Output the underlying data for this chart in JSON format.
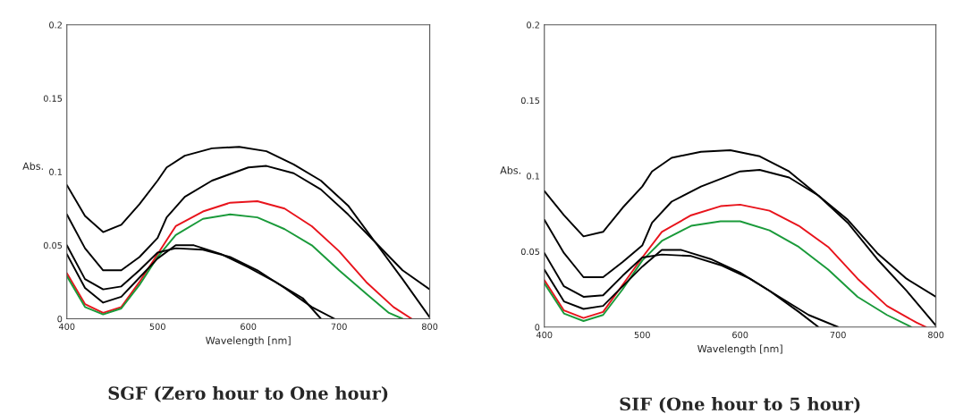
{
  "chart_data": [
    {
      "type": "line",
      "title": "SGF (Zero hour to One hour)",
      "xlabel": "Wavelength [nm]",
      "ylabel": "Abs.",
      "xlim": [
        400,
        800
      ],
      "ylim": [
        0,
        0.2
      ],
      "xticks": [
        400,
        500,
        600,
        700,
        800
      ],
      "yticks": [
        0,
        0.05,
        0.1,
        0.15,
        0.2
      ],
      "grid": false,
      "marker": "none",
      "line_style": "solid",
      "series": [
        {
          "color": "#000000",
          "x": [
            400,
            420,
            440,
            460,
            480,
            500,
            510,
            530,
            560,
            590,
            620,
            650,
            680,
            710,
            740,
            770,
            800
          ],
          "values": [
            0.091,
            0.07,
            0.059,
            0.064,
            0.078,
            0.094,
            0.103,
            0.111,
            0.116,
            0.117,
            0.114,
            0.105,
            0.094,
            0.077,
            0.052,
            0.033,
            0.02
          ]
        },
        {
          "color": "#000000",
          "x": [
            400,
            420,
            440,
            460,
            480,
            500,
            510,
            530,
            560,
            600,
            620,
            650,
            680,
            710,
            740,
            770,
            800
          ],
          "values": [
            0.071,
            0.048,
            0.033,
            0.033,
            0.042,
            0.055,
            0.069,
            0.083,
            0.094,
            0.103,
            0.104,
            0.099,
            0.088,
            0.071,
            0.052,
            0.027,
            0.001
          ]
        },
        {
          "color": "#e8141c",
          "x": [
            400,
            420,
            440,
            460,
            480,
            500,
            520,
            550,
            580,
            610,
            640,
            670,
            700,
            730,
            760,
            780
          ],
          "values": [
            0.031,
            0.01,
            0.004,
            0.008,
            0.025,
            0.044,
            0.063,
            0.073,
            0.079,
            0.08,
            0.075,
            0.063,
            0.046,
            0.025,
            0.008,
            0
          ]
        },
        {
          "color": "#1a9a3a",
          "x": [
            400,
            420,
            440,
            460,
            480,
            500,
            520,
            550,
            580,
            610,
            640,
            670,
            700,
            730,
            755,
            770
          ],
          "values": [
            0.029,
            0.008,
            0.003,
            0.007,
            0.023,
            0.042,
            0.057,
            0.068,
            0.071,
            0.069,
            0.061,
            0.05,
            0.033,
            0.017,
            0.004,
            0
          ]
        },
        {
          "color": "#000000",
          "x": [
            400,
            420,
            440,
            460,
            480,
            500,
            520,
            540,
            570,
            600,
            630,
            660,
            680
          ],
          "values": [
            0.044,
            0.021,
            0.011,
            0.015,
            0.028,
            0.041,
            0.05,
            0.05,
            0.044,
            0.035,
            0.025,
            0.014,
            0
          ]
        },
        {
          "color": "#000000",
          "x": [
            400,
            420,
            440,
            460,
            480,
            500,
            520,
            550,
            580,
            610,
            640,
            670,
            695
          ],
          "values": [
            0.05,
            0.027,
            0.02,
            0.022,
            0.033,
            0.045,
            0.048,
            0.047,
            0.042,
            0.033,
            0.021,
            0.008,
            0
          ]
        }
      ]
    },
    {
      "type": "line",
      "title": "SIF (One hour to 5 hour)",
      "xlabel": "Wavelength [nm]",
      "ylabel": "Abs.",
      "xlim": [
        400,
        800
      ],
      "ylim": [
        0,
        0.2
      ],
      "xticks": [
        400,
        500,
        600,
        700,
        800
      ],
      "yticks": [
        0,
        0.05,
        0.1,
        0.15,
        0.2
      ],
      "grid": false,
      "marker": "none",
      "line_style": "solid",
      "series": [
        {
          "color": "#000000",
          "x": [
            400,
            420,
            440,
            460,
            480,
            500,
            510,
            530,
            560,
            590,
            620,
            650,
            680,
            710,
            740,
            770,
            800
          ],
          "values": [
            0.09,
            0.074,
            0.06,
            0.063,
            0.079,
            0.093,
            0.103,
            0.112,
            0.116,
            0.117,
            0.113,
            0.103,
            0.087,
            0.071,
            0.049,
            0.032,
            0.02
          ]
        },
        {
          "color": "#000000",
          "x": [
            400,
            420,
            440,
            460,
            480,
            500,
            510,
            530,
            560,
            600,
            620,
            650,
            680,
            710,
            740,
            770,
            800
          ],
          "values": [
            0.071,
            0.049,
            0.033,
            0.033,
            0.043,
            0.054,
            0.069,
            0.083,
            0.093,
            0.103,
            0.104,
            0.099,
            0.087,
            0.069,
            0.045,
            0.024,
            0.001
          ]
        },
        {
          "color": "#e8141c",
          "x": [
            400,
            420,
            440,
            460,
            480,
            500,
            520,
            550,
            580,
            600,
            630,
            660,
            690,
            720,
            750,
            780,
            790
          ],
          "values": [
            0.031,
            0.011,
            0.006,
            0.01,
            0.028,
            0.046,
            0.063,
            0.074,
            0.08,
            0.081,
            0.077,
            0.067,
            0.053,
            0.032,
            0.014,
            0.003,
            0
          ]
        },
        {
          "color": "#1a9a3a",
          "x": [
            400,
            420,
            440,
            460,
            480,
            500,
            520,
            550,
            580,
            600,
            630,
            660,
            690,
            720,
            750,
            775
          ],
          "values": [
            0.029,
            0.009,
            0.004,
            0.008,
            0.025,
            0.044,
            0.057,
            0.067,
            0.07,
            0.07,
            0.064,
            0.053,
            0.038,
            0.02,
            0.008,
            0
          ]
        },
        {
          "color": "#000000",
          "x": [
            400,
            420,
            440,
            460,
            480,
            500,
            520,
            540,
            570,
            600,
            630,
            660,
            680
          ],
          "values": [
            0.038,
            0.017,
            0.012,
            0.014,
            0.027,
            0.04,
            0.051,
            0.051,
            0.045,
            0.036,
            0.024,
            0.01,
            0
          ]
        },
        {
          "color": "#000000",
          "x": [
            400,
            420,
            440,
            460,
            480,
            500,
            520,
            550,
            580,
            610,
            640,
            670,
            700
          ],
          "values": [
            0.049,
            0.027,
            0.02,
            0.021,
            0.034,
            0.046,
            0.048,
            0.047,
            0.041,
            0.032,
            0.02,
            0.008,
            0
          ]
        }
      ]
    }
  ]
}
